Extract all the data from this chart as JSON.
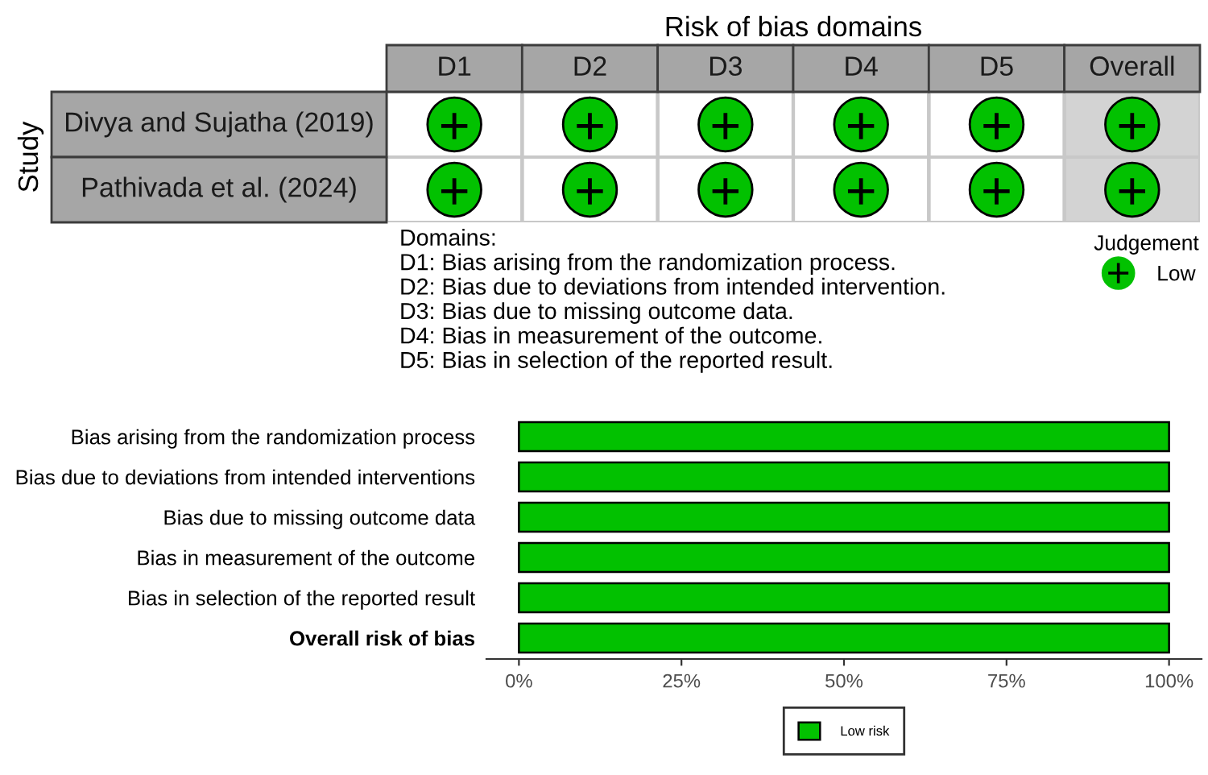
{
  "chart_data": [
    {
      "type": "heatmap",
      "title": "Risk of bias domains",
      "ylabel": "Study",
      "categories": [
        "D1",
        "D2",
        "D3",
        "D4",
        "D5",
        "Overall"
      ],
      "y_categories": [
        "Divya and Sujatha (2019)",
        "Pathivada et al. (2024)"
      ],
      "cells": [
        [
          "+",
          "+",
          "+",
          "+",
          "+",
          "+"
        ],
        [
          "+",
          "+",
          "+",
          "+",
          "+",
          "+"
        ]
      ],
      "color": "#02c100",
      "bands": [
        {
          "axis": "x",
          "from": "Overall",
          "to": "Overall",
          "color": "#d3d3d3"
        }
      ],
      "annotations": [
        "Domains:\nD1: Bias arising from the randomization process.\nD2: Bias due to deviations from intended intervention.\nD3: Bias due to missing outcome data.\nD4: Bias in measurement of the outcome.\nD5: Bias in selection of the reported result."
      ]
    },
    {
      "type": "other",
      "legend_title": "Judgement",
      "series": [
        {
          "name": "Low",
          "color": "#02c100"
        }
      ],
      "legend": "top right"
    },
    {
      "type": "bar",
      "orientation": "horizontal",
      "categories": [
        "Bias arising from the randomization process",
        "Bias due to deviations from intended interventions",
        "Bias due to missing outcome data",
        "Bias in measurement of the outcome",
        "Bias in selection of the reported result",
        "Overall risk of bias"
      ],
      "series": [
        {
          "name": "Low risk",
          "color": "#02c100",
          "values": [
            100,
            100,
            100,
            100,
            100,
            100
          ]
        }
      ],
      "xlim": [
        -5,
        105
      ],
      "xticks": [
        {
          "value": 0,
          "label": "0%"
        },
        {
          "value": 25,
          "label": "25%"
        },
        {
          "value": 50,
          "label": "50%"
        },
        {
          "value": 75,
          "label": "75%"
        },
        {
          "value": 100,
          "label": "100%"
        }
      ],
      "legend": "bottom"
    }
  ]
}
